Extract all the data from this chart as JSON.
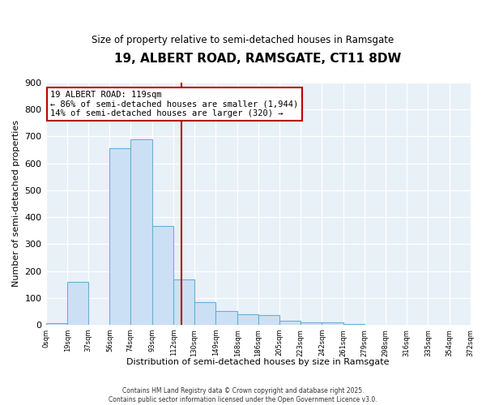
{
  "title": "19, ALBERT ROAD, RAMSGATE, CT11 8DW",
  "subtitle": "Size of property relative to semi-detached houses in Ramsgate",
  "xlabel": "Distribution of semi-detached houses by size in Ramsgate",
  "ylabel": "Number of semi-detached properties",
  "bar_edges": [
    0,
    19,
    37,
    56,
    74,
    93,
    112,
    130,
    149,
    168,
    186,
    205,
    223,
    242,
    261,
    279,
    298,
    316,
    335,
    354,
    372
  ],
  "bar_heights": [
    5,
    160,
    0,
    655,
    690,
    367,
    170,
    85,
    50,
    40,
    35,
    15,
    10,
    10,
    2,
    0,
    0,
    0,
    0,
    0
  ],
  "bar_color": "#cce0f5",
  "bar_edge_color": "#6aaed6",
  "vline_x": 119,
  "vline_color": "#bb0000",
  "annotation_title": "19 ALBERT ROAD: 119sqm",
  "annotation_line1": "← 86% of semi-detached houses are smaller (1,944)",
  "annotation_line2": "14% of semi-detached houses are larger (320) →",
  "annotation_box_facecolor": "#ffffff",
  "annotation_box_edgecolor": "#bb0000",
  "ylim": [
    0,
    900
  ],
  "yticks": [
    0,
    100,
    200,
    300,
    400,
    500,
    600,
    700,
    800,
    900
  ],
  "tick_labels": [
    "0sqm",
    "19sqm",
    "37sqm",
    "56sqm",
    "74sqm",
    "93sqm",
    "112sqm",
    "130sqm",
    "149sqm",
    "168sqm",
    "186sqm",
    "205sqm",
    "223sqm",
    "242sqm",
    "261sqm",
    "279sqm",
    "298sqm",
    "316sqm",
    "335sqm",
    "354sqm",
    "372sqm"
  ],
  "footer_line1": "Contains HM Land Registry data © Crown copyright and database right 2025.",
  "footer_line2": "Contains public sector information licensed under the Open Government Licence v3.0.",
  "bg_color": "#ffffff",
  "plot_bg_color": "#e8f0f8",
  "grid_color": "#ffffff"
}
